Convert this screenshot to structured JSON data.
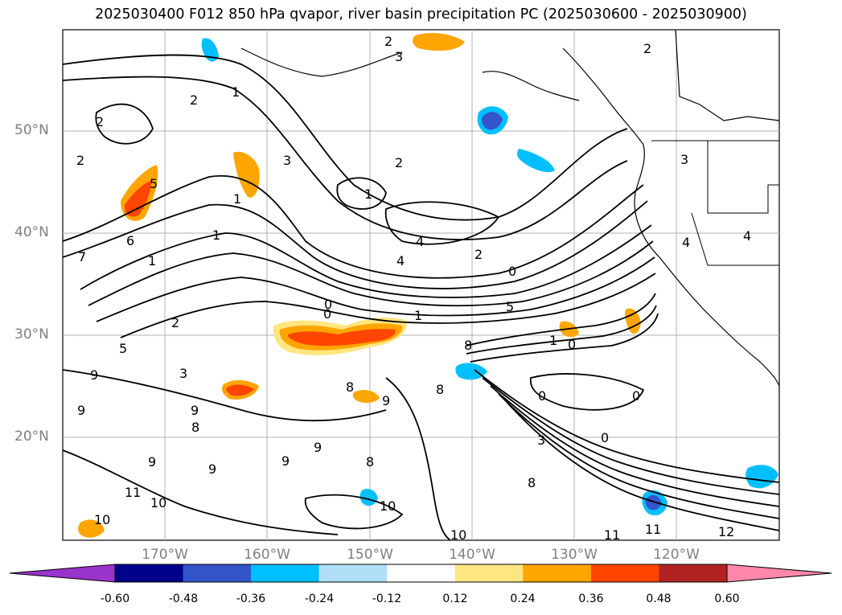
{
  "title": "2025030400 F012 850 hPa qvapor, river basin precipitation PC (2025030600 - 2025030900)",
  "lat_labels": [
    "50°N",
    "40°N",
    "30°N",
    "20°N"
  ],
  "lon_labels": [
    "170°W",
    "160°W",
    "150°W",
    "140°W",
    "130°W",
    "120°W"
  ],
  "colorbar": {
    "ticks": [
      "-0.60",
      "-0.48",
      "-0.36",
      "-0.24",
      "-0.12",
      "0.12",
      "0.24",
      "0.36",
      "0.48",
      "0.60"
    ],
    "colors": [
      "#9933cc",
      "#00008b",
      "#3355cc",
      "#00bfff",
      "#b0e0f8",
      "#ffffff",
      "#ffe680",
      "#ffa500",
      "#ff4500",
      "#b22222",
      "#ff88aa"
    ],
    "extend": "both"
  },
  "contour_labels": [
    "2",
    "3",
    "2",
    "2",
    "1",
    "2",
    "3",
    "2",
    "1",
    "2",
    "4",
    "4",
    "2",
    "0",
    "1",
    "1",
    "5",
    "6",
    "7",
    "5",
    "0",
    "9",
    "9",
    "8",
    "9",
    "0",
    "0",
    "1",
    "1",
    "5",
    "3",
    "2",
    "0",
    "8",
    "8",
    "9",
    "8",
    "9",
    "8",
    "9",
    "9",
    "9",
    "10",
    "11",
    "10",
    "11",
    "10",
    "11",
    "12",
    "0",
    "0",
    "3",
    "8",
    "10",
    "1",
    "3",
    "4",
    "4"
  ],
  "map_features": [
    "coastline",
    "state-borders",
    "gridlines",
    "qvapor-contours",
    "pc-shading"
  ]
}
